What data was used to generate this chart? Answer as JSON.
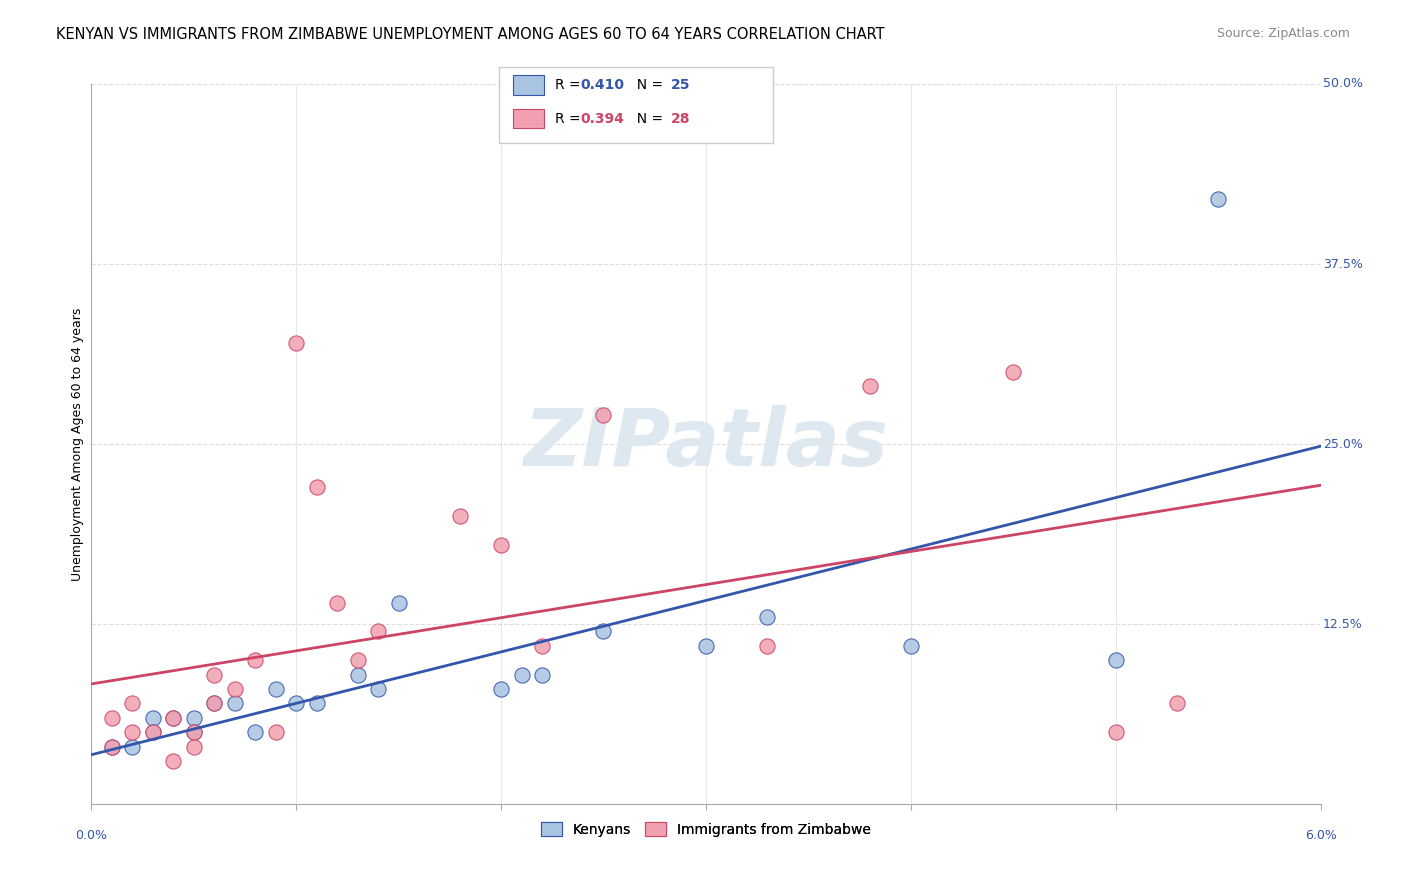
{
  "title": "KENYAN VS IMMIGRANTS FROM ZIMBABWE UNEMPLOYMENT AMONG AGES 60 TO 64 YEARS CORRELATION CHART",
  "source": "Source: ZipAtlas.com",
  "ylabel": "Unemployment Among Ages 60 to 64 years",
  "xlim": [
    0.0,
    0.06
  ],
  "ylim": [
    0.0,
    0.5
  ],
  "y_ticks": [
    0.0,
    0.125,
    0.25,
    0.375,
    0.5
  ],
  "y_tick_labels": [
    "",
    "12.5%",
    "25.0%",
    "37.5%",
    "50.0%"
  ],
  "background_color": "#ffffff",
  "grid_color": "#dddddd",
  "watermark_text": "ZIPatlas",
  "kenyan_R": 0.41,
  "kenyan_N": 25,
  "zimbabwe_R": 0.394,
  "zimbabwe_N": 28,
  "kenyan_color": "#a8c4e0",
  "kenyan_line_color": "#3355aa",
  "zimbabwe_color": "#f0a0b0",
  "zimbabwe_line_color": "#cc4466",
  "kenyan_x": [
    0.001,
    0.002,
    0.003,
    0.003,
    0.004,
    0.005,
    0.005,
    0.006,
    0.007,
    0.008,
    0.009,
    0.01,
    0.011,
    0.013,
    0.014,
    0.015,
    0.02,
    0.021,
    0.022,
    0.025,
    0.03,
    0.033,
    0.04,
    0.05,
    0.055
  ],
  "kenyan_y": [
    0.04,
    0.04,
    0.06,
    0.05,
    0.06,
    0.06,
    0.05,
    0.07,
    0.07,
    0.05,
    0.08,
    0.07,
    0.07,
    0.09,
    0.08,
    0.14,
    0.08,
    0.09,
    0.09,
    0.12,
    0.11,
    0.13,
    0.11,
    0.1,
    0.42
  ],
  "zimbabwe_x": [
    0.001,
    0.001,
    0.002,
    0.002,
    0.003,
    0.004,
    0.004,
    0.005,
    0.005,
    0.006,
    0.006,
    0.007,
    0.008,
    0.009,
    0.01,
    0.011,
    0.012,
    0.013,
    0.014,
    0.018,
    0.02,
    0.022,
    0.025,
    0.033,
    0.038,
    0.045,
    0.05,
    0.053
  ],
  "zimbabwe_y": [
    0.04,
    0.06,
    0.05,
    0.07,
    0.05,
    0.03,
    0.06,
    0.04,
    0.05,
    0.07,
    0.09,
    0.08,
    0.1,
    0.05,
    0.32,
    0.22,
    0.14,
    0.1,
    0.12,
    0.2,
    0.18,
    0.11,
    0.27,
    0.11,
    0.29,
    0.3,
    0.05,
    0.07
  ],
  "title_fontsize": 10.5,
  "source_fontsize": 9,
  "axis_label_fontsize": 9,
  "tick_fontsize": 9,
  "legend_fontsize": 10
}
